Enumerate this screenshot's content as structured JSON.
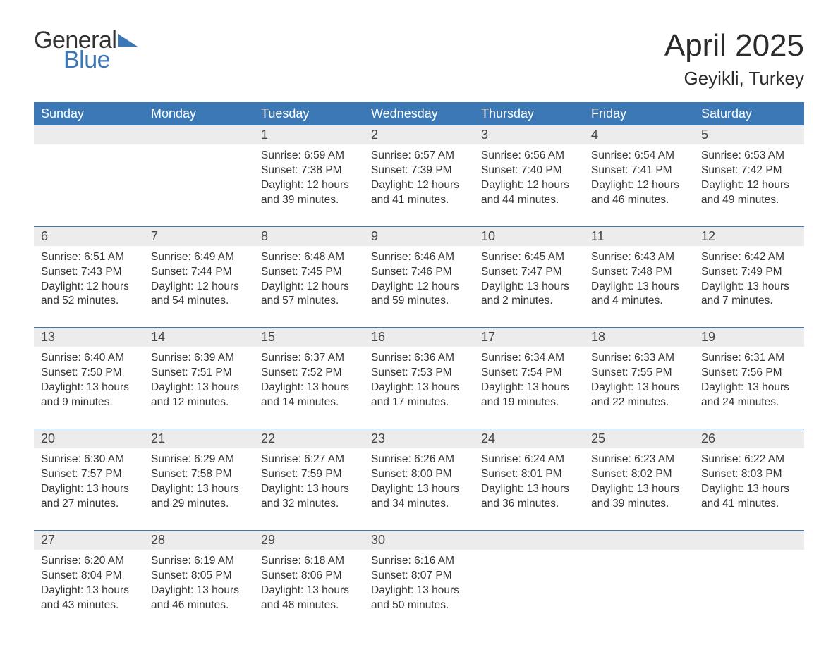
{
  "brand": {
    "word1": "General",
    "word2": "Blue",
    "accent_color": "#3b78b5"
  },
  "title": "April 2025",
  "location": "Geyikli, Turkey",
  "colors": {
    "header_bg": "#3b78b5",
    "header_text": "#ffffff",
    "daynum_bg": "#ececec",
    "row_divider": "#3b78b5",
    "body_text": "#333333",
    "page_bg": "#ffffff"
  },
  "typography": {
    "title_fontsize": 44,
    "location_fontsize": 26,
    "weekday_fontsize": 18,
    "daynum_fontsize": 18,
    "cell_fontsize": 15.5
  },
  "weekdays": [
    "Sunday",
    "Monday",
    "Tuesday",
    "Wednesday",
    "Thursday",
    "Friday",
    "Saturday"
  ],
  "weeks": [
    [
      null,
      null,
      {
        "n": "1",
        "sunrise": "6:59 AM",
        "sunset": "7:38 PM",
        "daylight": "12 hours and 39 minutes."
      },
      {
        "n": "2",
        "sunrise": "6:57 AM",
        "sunset": "7:39 PM",
        "daylight": "12 hours and 41 minutes."
      },
      {
        "n": "3",
        "sunrise": "6:56 AM",
        "sunset": "7:40 PM",
        "daylight": "12 hours and 44 minutes."
      },
      {
        "n": "4",
        "sunrise": "6:54 AM",
        "sunset": "7:41 PM",
        "daylight": "12 hours and 46 minutes."
      },
      {
        "n": "5",
        "sunrise": "6:53 AM",
        "sunset": "7:42 PM",
        "daylight": "12 hours and 49 minutes."
      }
    ],
    [
      {
        "n": "6",
        "sunrise": "6:51 AM",
        "sunset": "7:43 PM",
        "daylight": "12 hours and 52 minutes."
      },
      {
        "n": "7",
        "sunrise": "6:49 AM",
        "sunset": "7:44 PM",
        "daylight": "12 hours and 54 minutes."
      },
      {
        "n": "8",
        "sunrise": "6:48 AM",
        "sunset": "7:45 PM",
        "daylight": "12 hours and 57 minutes."
      },
      {
        "n": "9",
        "sunrise": "6:46 AM",
        "sunset": "7:46 PM",
        "daylight": "12 hours and 59 minutes."
      },
      {
        "n": "10",
        "sunrise": "6:45 AM",
        "sunset": "7:47 PM",
        "daylight": "13 hours and 2 minutes."
      },
      {
        "n": "11",
        "sunrise": "6:43 AM",
        "sunset": "7:48 PM",
        "daylight": "13 hours and 4 minutes."
      },
      {
        "n": "12",
        "sunrise": "6:42 AM",
        "sunset": "7:49 PM",
        "daylight": "13 hours and 7 minutes."
      }
    ],
    [
      {
        "n": "13",
        "sunrise": "6:40 AM",
        "sunset": "7:50 PM",
        "daylight": "13 hours and 9 minutes."
      },
      {
        "n": "14",
        "sunrise": "6:39 AM",
        "sunset": "7:51 PM",
        "daylight": "13 hours and 12 minutes."
      },
      {
        "n": "15",
        "sunrise": "6:37 AM",
        "sunset": "7:52 PM",
        "daylight": "13 hours and 14 minutes."
      },
      {
        "n": "16",
        "sunrise": "6:36 AM",
        "sunset": "7:53 PM",
        "daylight": "13 hours and 17 minutes."
      },
      {
        "n": "17",
        "sunrise": "6:34 AM",
        "sunset": "7:54 PM",
        "daylight": "13 hours and 19 minutes."
      },
      {
        "n": "18",
        "sunrise": "6:33 AM",
        "sunset": "7:55 PM",
        "daylight": "13 hours and 22 minutes."
      },
      {
        "n": "19",
        "sunrise": "6:31 AM",
        "sunset": "7:56 PM",
        "daylight": "13 hours and 24 minutes."
      }
    ],
    [
      {
        "n": "20",
        "sunrise": "6:30 AM",
        "sunset": "7:57 PM",
        "daylight": "13 hours and 27 minutes."
      },
      {
        "n": "21",
        "sunrise": "6:29 AM",
        "sunset": "7:58 PM",
        "daylight": "13 hours and 29 minutes."
      },
      {
        "n": "22",
        "sunrise": "6:27 AM",
        "sunset": "7:59 PM",
        "daylight": "13 hours and 32 minutes."
      },
      {
        "n": "23",
        "sunrise": "6:26 AM",
        "sunset": "8:00 PM",
        "daylight": "13 hours and 34 minutes."
      },
      {
        "n": "24",
        "sunrise": "6:24 AM",
        "sunset": "8:01 PM",
        "daylight": "13 hours and 36 minutes."
      },
      {
        "n": "25",
        "sunrise": "6:23 AM",
        "sunset": "8:02 PM",
        "daylight": "13 hours and 39 minutes."
      },
      {
        "n": "26",
        "sunrise": "6:22 AM",
        "sunset": "8:03 PM",
        "daylight": "13 hours and 41 minutes."
      }
    ],
    [
      {
        "n": "27",
        "sunrise": "6:20 AM",
        "sunset": "8:04 PM",
        "daylight": "13 hours and 43 minutes."
      },
      {
        "n": "28",
        "sunrise": "6:19 AM",
        "sunset": "8:05 PM",
        "daylight": "13 hours and 46 minutes."
      },
      {
        "n": "29",
        "sunrise": "6:18 AM",
        "sunset": "8:06 PM",
        "daylight": "13 hours and 48 minutes."
      },
      {
        "n": "30",
        "sunrise": "6:16 AM",
        "sunset": "8:07 PM",
        "daylight": "13 hours and 50 minutes."
      },
      null,
      null,
      null
    ]
  ],
  "labels": {
    "sunrise": "Sunrise:",
    "sunset": "Sunset:",
    "daylight": "Daylight:"
  }
}
